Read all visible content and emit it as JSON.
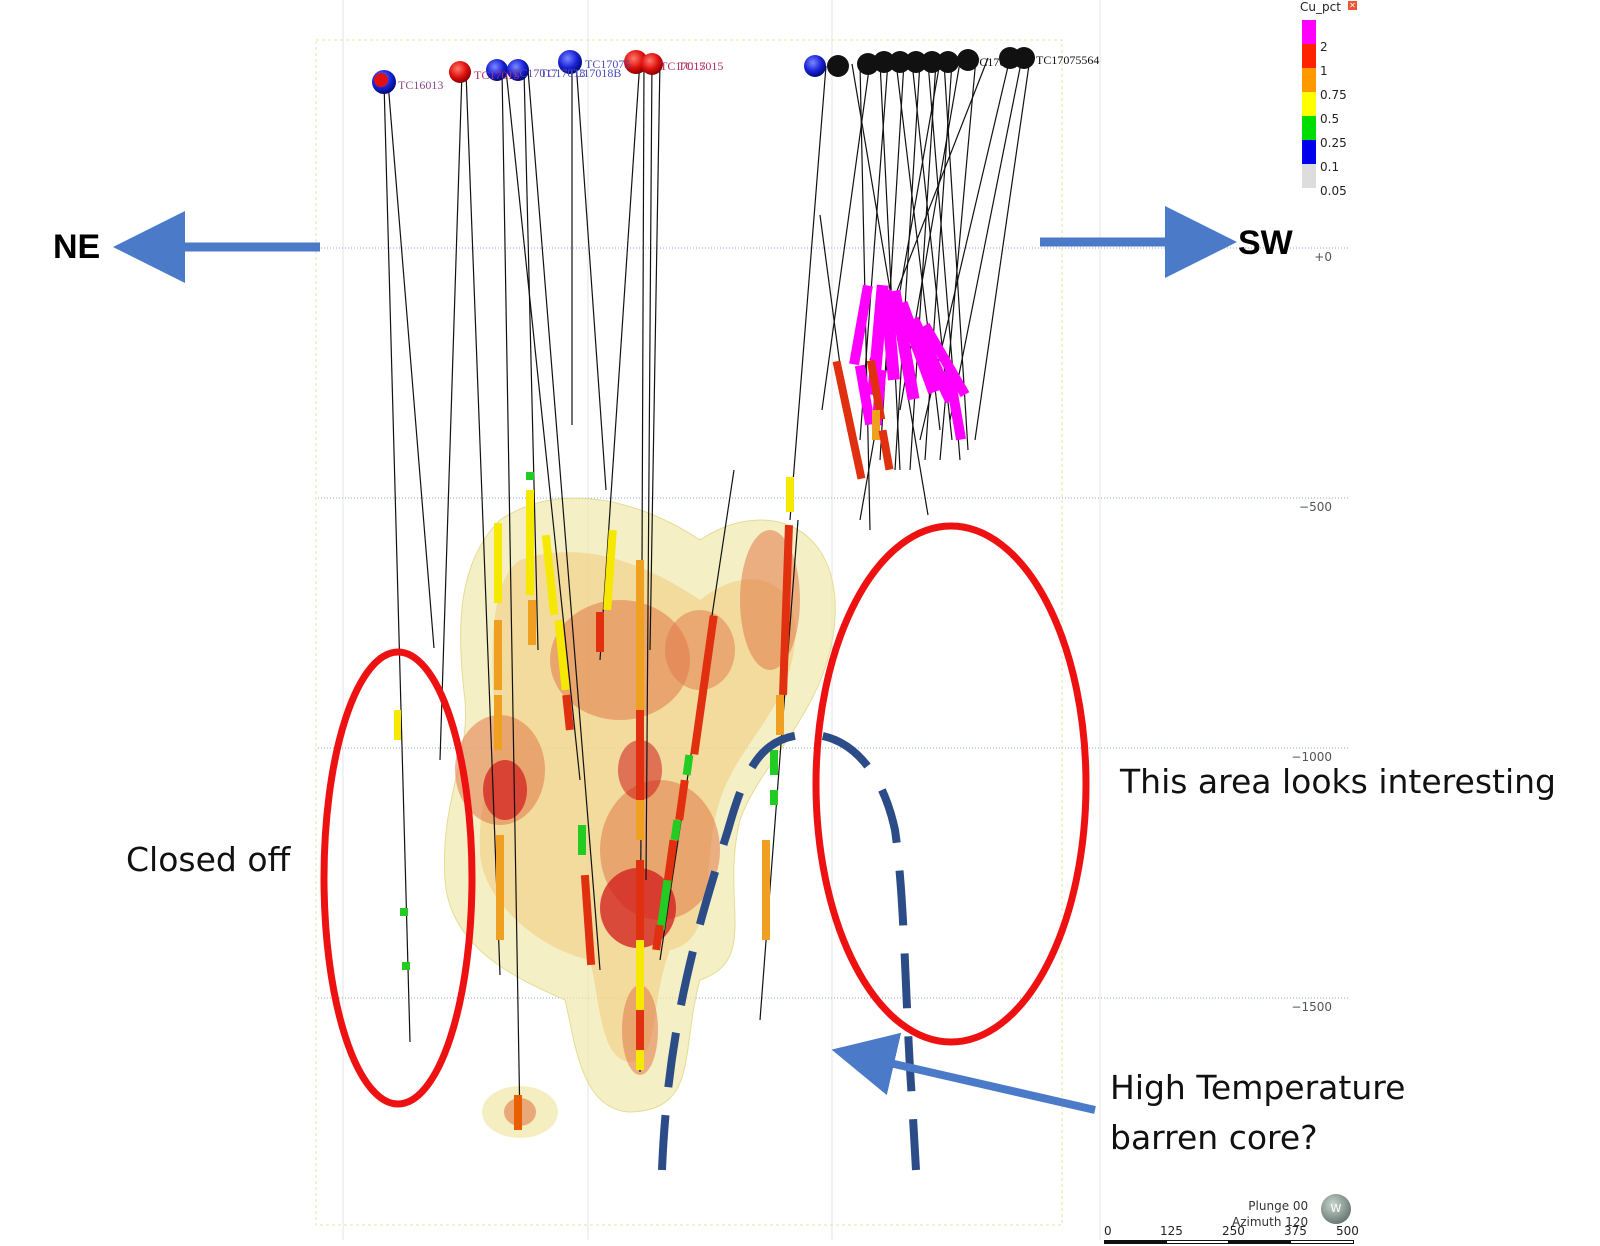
{
  "directions": {
    "left": "NE",
    "right": "SW"
  },
  "elevation_labels": [
    "+0",
    "−500",
    "−1000",
    "−1500"
  ],
  "annotations": {
    "closed_off": "Closed off",
    "interesting": "This area looks interesting",
    "high_temp_line1": "High Temperature",
    "high_temp_line2": "barren core?"
  },
  "legend": {
    "title": "Cu_pct",
    "entries": [
      {
        "label": "2",
        "color": "#ff00ff"
      },
      {
        "label": "1",
        "color": "#ff2200"
      },
      {
        "label": "0.75",
        "color": "#ff9900"
      },
      {
        "label": "0.5",
        "color": "#ffff00"
      },
      {
        "label": "0.25",
        "color": "#00dd00"
      },
      {
        "label": "0.1",
        "color": "#0000ee"
      },
      {
        "label": "0.05",
        "color": "#dddddd"
      }
    ]
  },
  "collar_labels": [
    "TC16013",
    "TC17015",
    "TC17017",
    "TC17018",
    "TC17075",
    "TC17015",
    "TC17018B",
    "TC17015",
    "TC17015",
    "TC17075",
    "TC17015",
    "TC17075564"
  ],
  "view": {
    "plunge": "Plunge 00",
    "azimuth": "Azimuth 120"
  },
  "scale": {
    "ticks": [
      "0",
      "125",
      "250",
      "375",
      "500"
    ]
  },
  "colors": {
    "annotation_ellipse": "#ee1111",
    "arrow": "#4a7ac8",
    "dashed_outline": "#2b4c86",
    "shell_outer": "#efe7a6",
    "shell_inner": "#e06a3a",
    "shell_core": "#d01a1a"
  }
}
